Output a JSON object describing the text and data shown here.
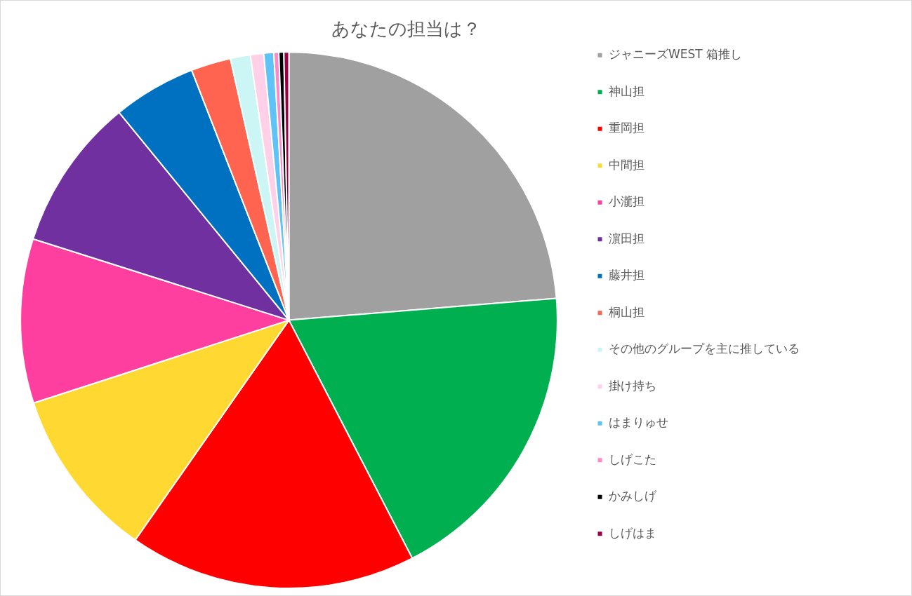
{
  "chart_data": {
    "type": "pie",
    "title": "あなたの担当は？",
    "categories": [
      "ジャニーズWEST 箱推し",
      "神山担",
      "重岡担",
      "中間担",
      "小瀧担",
      "濵田担",
      "藤井担",
      "桐山担",
      "その他のグループを主に推している",
      "掛け持ち",
      "はまりゅせ",
      "しげこた",
      "かみしげ",
      "しげはま"
    ],
    "values": [
      23.7,
      18.7,
      17.3,
      10.3,
      9.9,
      9.2,
      5.0,
      2.4,
      1.2,
      0.8,
      0.6,
      0.3,
      0.3,
      0.3
    ],
    "colors": [
      "#a0a0a0",
      "#00b050",
      "#ff0000",
      "#ffd932",
      "#ff3fa0",
      "#7030a0",
      "#0070c0",
      "#ff6450",
      "#ccf5f5",
      "#ffd0e8",
      "#5fc4f5",
      "#ff88c8",
      "#000000",
      "#990044"
    ],
    "legend": "right"
  }
}
